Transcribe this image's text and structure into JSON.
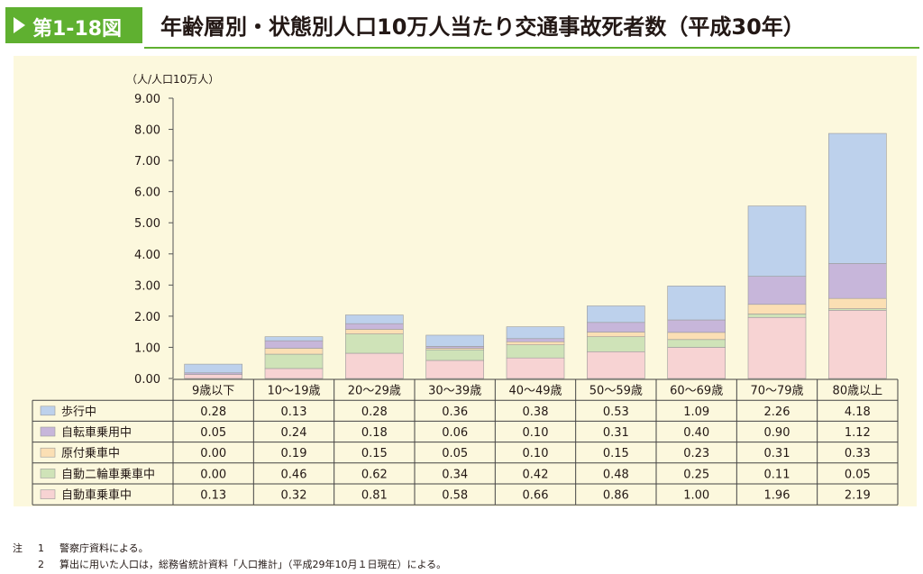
{
  "header": {
    "figure_label": "第1-18図",
    "title": "年齢層別・状態別人口10万人当たり交通事故死者数（平成30年）"
  },
  "chart_data": {
    "type": "bar",
    "stacked": true,
    "unit_label": "（人/人口10万人）",
    "ylim": [
      0,
      9
    ],
    "yticks": [
      "0.00",
      "1.00",
      "2.00",
      "3.00",
      "4.00",
      "5.00",
      "6.00",
      "7.00",
      "8.00",
      "9.00"
    ],
    "categories": [
      "9歳以下",
      "10～19歳",
      "20～29歳",
      "30～39歳",
      "40～49歳",
      "50～59歳",
      "60～69歳",
      "70～79歳",
      "80歳以上"
    ],
    "series": [
      {
        "name": "自動車乗車中",
        "color": "#f7d3d3",
        "values": [
          0.13,
          0.32,
          0.81,
          0.58,
          0.66,
          0.86,
          1.0,
          1.96,
          2.19
        ],
        "labels": [
          "0.13",
          "0.32",
          "0.81",
          "0.58",
          "0.66",
          "0.86",
          "1.00",
          "1.96",
          "2.19"
        ]
      },
      {
        "name": "自動二輪車乗車中",
        "color": "#cfe3b8",
        "values": [
          0.0,
          0.46,
          0.62,
          0.34,
          0.42,
          0.48,
          0.25,
          0.11,
          0.05
        ],
        "labels": [
          "0.00",
          "0.46",
          "0.62",
          "0.34",
          "0.42",
          "0.48",
          "0.25",
          "0.11",
          "0.05"
        ]
      },
      {
        "name": "原付乗車中",
        "color": "#fbdfb4",
        "values": [
          0.0,
          0.19,
          0.15,
          0.05,
          0.1,
          0.15,
          0.23,
          0.31,
          0.33
        ],
        "labels": [
          "0.00",
          "0.19",
          "0.15",
          "0.05",
          "0.10",
          "0.15",
          "0.23",
          "0.31",
          "0.33"
        ]
      },
      {
        "name": "自転車乗用中",
        "color": "#c7b6da",
        "values": [
          0.05,
          0.24,
          0.18,
          0.06,
          0.1,
          0.31,
          0.4,
          0.9,
          1.12
        ],
        "labels": [
          "0.05",
          "0.24",
          "0.18",
          "0.06",
          "0.10",
          "0.31",
          "0.40",
          "0.90",
          "1.12"
        ]
      },
      {
        "name": "歩行中",
        "color": "#bdd1ec",
        "values": [
          0.28,
          0.13,
          0.28,
          0.36,
          0.38,
          0.53,
          1.09,
          2.26,
          4.18
        ],
        "labels": [
          "0.28",
          "0.13",
          "0.28",
          "0.36",
          "0.38",
          "0.53",
          "1.09",
          "2.26",
          "4.18"
        ]
      }
    ],
    "table_row_order": [
      "歩行中",
      "自転車乗用中",
      "原付乗車中",
      "自動二輪車乗車中",
      "自動車乗車中"
    ]
  },
  "notes": [
    {
      "k1": "注",
      "k2": "1",
      "text": "警察庁資料による。"
    },
    {
      "k1": "",
      "k2": "2",
      "text": "算出に用いた人口は，総務省統計資料「人口推計」（平成29年10月１日現在）による。"
    }
  ]
}
